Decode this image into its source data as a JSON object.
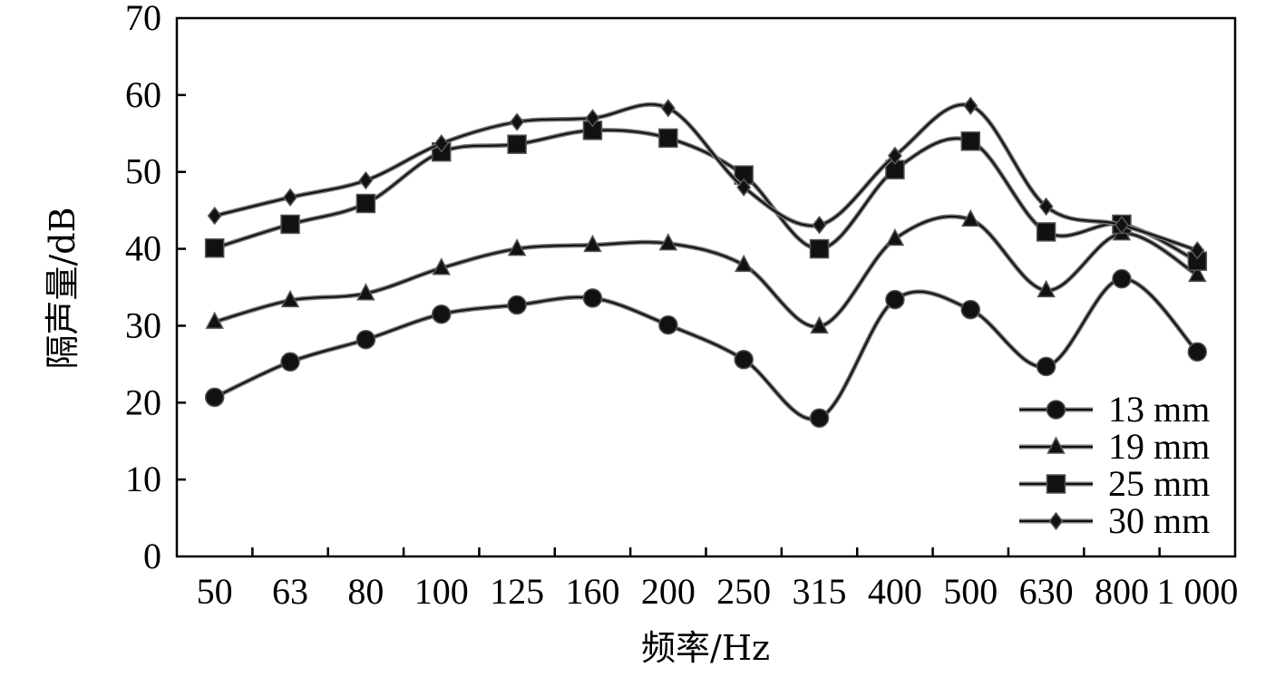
{
  "chart_data": {
    "type": "line",
    "title": "",
    "xlabel": "频率/Hz",
    "ylabel": "隔声量/dB",
    "categories": [
      "50",
      "63",
      "80",
      "100",
      "125",
      "160",
      "200",
      "250",
      "315",
      "400",
      "500",
      "630",
      "800",
      "1 000"
    ],
    "ylim": [
      0,
      70
    ],
    "yticks": [
      "0",
      "10",
      "20",
      "30",
      "40",
      "50",
      "60",
      "70"
    ],
    "grid": false,
    "legend_position": "bottom-right",
    "series": [
      {
        "name": "13 mm",
        "marker": "circle",
        "values": [
          20.7,
          25.3,
          28.2,
          31.5,
          32.7,
          33.6,
          30.1,
          25.6,
          18.0,
          33.4,
          32.1,
          24.7,
          36.1,
          26.6
        ]
      },
      {
        "name": "19 mm",
        "marker": "triangle",
        "values": [
          30.5,
          33.3,
          34.2,
          37.5,
          40.0,
          40.5,
          40.7,
          37.9,
          29.9,
          41.3,
          43.8,
          34.6,
          42.0,
          36.6
        ]
      },
      {
        "name": "25 mm",
        "marker": "square",
        "values": [
          40.1,
          43.2,
          45.9,
          52.6,
          53.6,
          55.4,
          54.4,
          49.6,
          40.0,
          50.3,
          54.0,
          42.2,
          43.2,
          38.4
        ]
      },
      {
        "name": "30 mm",
        "marker": "diamond",
        "values": [
          44.3,
          46.7,
          48.9,
          53.7,
          56.5,
          57.0,
          58.3,
          48.0,
          43.1,
          52.1,
          58.6,
          45.5,
          43.1,
          39.8
        ]
      }
    ]
  }
}
